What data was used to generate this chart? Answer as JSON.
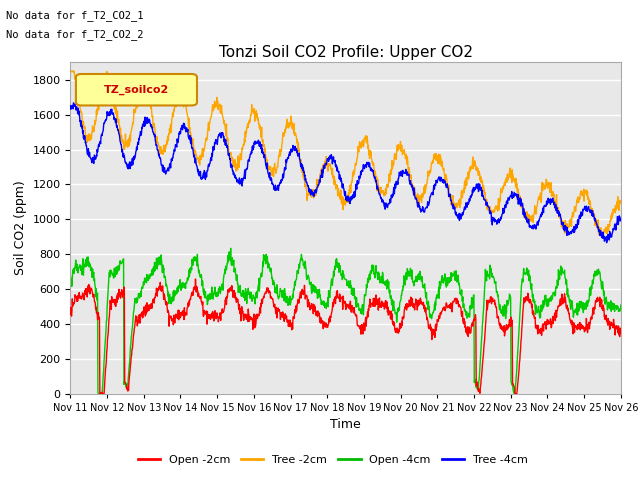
{
  "title": "Tonzi Soil CO2 Profile: Upper CO2",
  "xlabel": "Time",
  "ylabel": "Soil CO2 (ppm)",
  "annotation1": "No data for f_T2_CO2_1",
  "annotation2": "No data for f_T2_CO2_2",
  "legend_box_label": "TZ_soilco2",
  "ylim": [
    0,
    1900
  ],
  "yticks": [
    0,
    200,
    400,
    600,
    800,
    1000,
    1200,
    1400,
    1600,
    1800
  ],
  "xtick_labels": [
    "Nov 11",
    "Nov 12",
    "Nov 13",
    "Nov 14",
    "Nov 15",
    "Nov 16",
    "Nov 17",
    "Nov 18",
    "Nov 19",
    "Nov 20",
    "Nov 21",
    "Nov 22",
    "Nov 23",
    "Nov 24",
    "Nov 25",
    "Nov 26"
  ],
  "legend_entries": [
    "Open -2cm",
    "Tree -2cm",
    "Open -4cm",
    "Tree -4cm"
  ],
  "legend_colors": [
    "#ff0000",
    "#ffa500",
    "#00bb00",
    "#0000ff"
  ],
  "background_color": "#ffffff",
  "plot_bg_color": "#e8e8e8",
  "grid_color": "#ffffff"
}
